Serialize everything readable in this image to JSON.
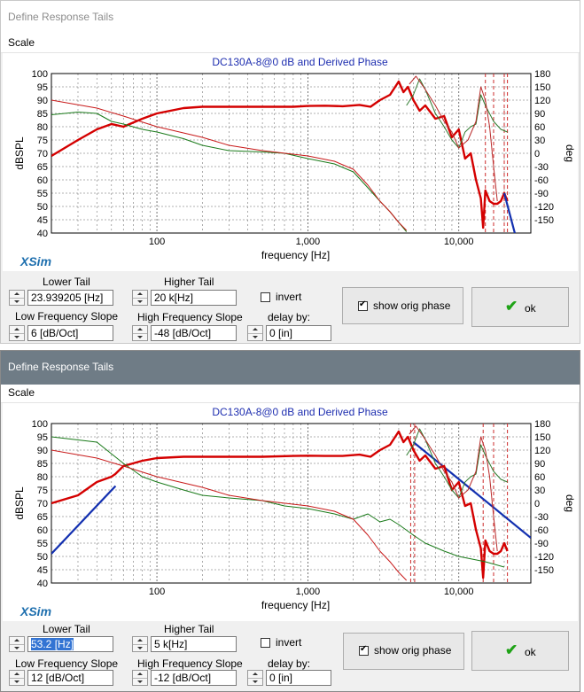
{
  "windows": [
    {
      "title": "Define Response Tails",
      "menu": "Scale",
      "chart_data": {
        "type": "line",
        "title": "DC130A-8@0 dB and Derived Phase",
        "xlabel": "frequency [Hz]",
        "ylabel": "dBSPL",
        "y2label": "deg",
        "x_scale": "log",
        "xlim": [
          20,
          30000
        ],
        "ylim": [
          40,
          100
        ],
        "y2lim": [
          -180,
          180
        ],
        "x_ticks": [
          "100",
          "1,000",
          "10,000"
        ],
        "y_ticks": [
          "100",
          "95",
          "90",
          "85",
          "80",
          "75",
          "70",
          "65",
          "60",
          "55",
          "50",
          "45",
          "40"
        ],
        "y2_ticks": [
          "180",
          "150",
          "120",
          "90",
          "60",
          "30",
          "0",
          "-30",
          "-60",
          "-90",
          "-120",
          "-150"
        ],
        "series": [
          {
            "color": "#d40000",
            "width": 2.4,
            "x": [
              20,
              30,
              40,
              50,
              60,
              80,
              100,
              150,
              200,
              300,
              500,
              800,
              1000,
              1300,
              1700,
              2200,
              2600,
              3000,
              3500,
              4000,
              4300,
              4600,
              5000,
              5500,
              6000,
              7000,
              8000,
              9000,
              10000,
              11000,
              12000,
              13000,
              14000,
              14500,
              15000,
              16000,
              17000,
              18000,
              19000,
              20000,
              21000
            ],
            "y": [
              69,
              75,
              79,
              81,
              80,
              83,
              85,
              87,
              87.5,
              87.5,
              87.5,
              87.5,
              87.8,
              87.9,
              87.7,
              88.2,
              87.5,
              90,
              92,
              97,
              93,
              95,
              90,
              86,
              88,
              83,
              84,
              76,
              79,
              68,
              70,
              60,
              53,
              42,
              56,
              52,
              51,
              51,
              52,
              55,
              52
            ]
          },
          {
            "color": "#1330b0",
            "width": 2.2,
            "x": [
              20000,
              23500
            ],
            "y": [
              55,
              40
            ]
          },
          {
            "color": "#1a7a1a",
            "width": 1,
            "x": [
              20,
              30,
              40,
              50,
              60,
              80,
              100,
              150,
              200,
              300,
              500,
              700,
              1000,
              1500,
              2000,
              2500,
              3000,
              3500,
              4000,
              4500
            ],
            "y": [
              84.5,
              85.5,
              85,
              82,
              81,
              79,
              78,
              75.5,
              73,
              71,
              70.5,
              70,
              68,
              66,
              63,
              57,
              52,
              48,
              44,
              40.5
            ]
          },
          {
            "color": "#c81a1a",
            "width": 1,
            "x": [
              20,
              40,
              60,
              100,
              200,
              300,
              500,
              1000,
              1500,
              2000,
              2500,
              3000,
              3500,
              4000,
              4500
            ],
            "y": [
              90,
              87,
              84,
              80,
              76,
              73,
              71,
              69,
              67,
              64,
              58,
              52,
              48,
              44,
              41
            ]
          },
          {
            "color": "#2e7a2e",
            "width": 1,
            "x": [
              4500,
              5000,
              5500,
              6000,
              7000,
              8000,
              9000,
              10000,
              11000,
              12000,
              13000,
              14000,
              15000,
              17000,
              19000,
              21000
            ],
            "y": [
              88,
              92,
              98,
              94,
              85,
              80,
              75,
              72,
              78,
              80,
              81,
              92,
              88,
              82,
              79,
              78
            ]
          },
          {
            "color": "#b92a2a",
            "width": 1,
            "x": [
              4700,
              5200,
              6000,
              7000,
              8000,
              9000,
              10000,
              11500,
              13000,
              14000,
              15000,
              16000,
              17000,
              18000
            ],
            "y": [
              96,
              99,
              94,
              88,
              82,
              78,
              72,
              75,
              82,
              95,
              90,
              80,
              65,
              52
            ]
          }
        ],
        "vlines": [
          {
            "color": "#cc2a2a",
            "x": [
              15000,
              17000,
              20000,
              21000
            ]
          }
        ]
      },
      "brand": "XSim",
      "lower_tail": {
        "label": "Lower Tail",
        "value": "23.939205 [Hz]"
      },
      "higher_tail": {
        "label": "Higher Tail",
        "value": "20 k[Hz]"
      },
      "low_slope": {
        "label": "Low Frequency Slope",
        "value": "6 [dB/Oct]"
      },
      "high_slope": {
        "label": "High Frequency Slope",
        "value": "-48 [dB/Oct]"
      },
      "invert": {
        "label": "invert",
        "checked": false
      },
      "delay": {
        "label": "delay by:",
        "value": "0 [in]"
      },
      "show_orig_phase": {
        "label": "show orig phase",
        "checked": true
      },
      "ok": "ok"
    },
    {
      "title": "Define Response Tails",
      "menu": "Scale",
      "chart_data": {
        "type": "line",
        "title": "DC130A-8@0 dB and Derived Phase",
        "xlabel": "frequency [Hz]",
        "ylabel": "dBSPL",
        "y2label": "deg",
        "x_scale": "log",
        "xlim": [
          20,
          30000
        ],
        "ylim": [
          40,
          100
        ],
        "y2lim": [
          -180,
          180
        ],
        "x_ticks": [
          "100",
          "1,000",
          "10,000"
        ],
        "y_ticks": [
          "100",
          "95",
          "90",
          "85",
          "80",
          "75",
          "70",
          "65",
          "60",
          "55",
          "50",
          "45",
          "40"
        ],
        "y2_ticks": [
          "180",
          "150",
          "120",
          "90",
          "60",
          "30",
          "0",
          "-30",
          "-60",
          "-90",
          "-120",
          "-150"
        ],
        "series": [
          {
            "color": "#1330b0",
            "width": 2.2,
            "x": [
              20,
              53.2
            ],
            "y": [
              51,
              76.5
            ]
          },
          {
            "color": "#1330b0",
            "width": 2.2,
            "x": [
              5000,
              30000
            ],
            "y": [
              93,
              57
            ]
          },
          {
            "color": "#d40000",
            "width": 2.4,
            "x": [
              20,
              30,
              40,
              50,
              53,
              60,
              80,
              100,
              150,
              200,
              300,
              500,
              800,
              1000,
              1300,
              1700,
              2200,
              2600,
              3000,
              3500,
              4000,
              4300,
              4600,
              5000,
              5500,
              6000,
              7000,
              8000,
              9000,
              10000,
              11000,
              12000,
              13000,
              14000,
              14500,
              15000,
              16000,
              17000,
              18000,
              19000,
              20000,
              21000
            ],
            "y": [
              70,
              73,
              78,
              80,
              81,
              84,
              86,
              87,
              87.5,
              87.5,
              87.5,
              87.5,
              87.8,
              87.9,
              87.8,
              87.8,
              88.3,
              87.5,
              90,
              92,
              97,
              93,
              95,
              90,
              86,
              88,
              83,
              84,
              75,
              78,
              69,
              70,
              60,
              53,
              42,
              56,
              52,
              51,
              51,
              52,
              55,
              52
            ]
          },
          {
            "color": "#1a7a1a",
            "width": 1,
            "x": [
              20,
              40,
              60,
              80,
              100,
              150,
              200,
              300,
              500,
              700,
              1000,
              1500,
              2000,
              2500,
              3000,
              3500,
              4000,
              5000,
              6000,
              8000,
              10000,
              15000,
              20000
            ],
            "y": [
              95,
              93,
              85,
              80,
              78,
              75,
              73,
              72,
              71,
              69,
              68,
              66,
              64,
              66,
              63,
              64,
              62,
              58,
              55,
              52,
              50,
              48,
              46
            ]
          },
          {
            "color": "#c81a1a",
            "width": 1,
            "x": [
              20,
              40,
              60,
              100,
              200,
              300,
              500,
              1000,
              1500,
              2000,
              2500,
              3000,
              3500,
              4000,
              4500
            ],
            "y": [
              90,
              87,
              84,
              80,
              76,
              73,
              71,
              69,
              67,
              64,
              58,
              52,
              48,
              44,
              41
            ]
          },
          {
            "color": "#2e7a2e",
            "width": 1,
            "x": [
              4500,
              5000,
              5500,
              6000,
              7000,
              8000,
              9000,
              10000,
              11000,
              12000,
              13000,
              14000,
              15000,
              17000,
              19000,
              21000
            ],
            "y": [
              88,
              92,
              98,
              94,
              85,
              80,
              75,
              72,
              78,
              80,
              81,
              92,
              88,
              82,
              79,
              78
            ]
          },
          {
            "color": "#b92a2a",
            "width": 1,
            "x": [
              4700,
              5200,
              6000,
              7000,
              8000,
              9000,
              10000,
              11500,
              13000,
              14000,
              15000,
              16000,
              17000,
              18000
            ],
            "y": [
              96,
              99,
              94,
              88,
              82,
              78,
              72,
              75,
              82,
              95,
              90,
              80,
              65,
              52
            ]
          }
        ],
        "vlines": [
          {
            "color": "#cc2a2a",
            "x": [
              4800,
              5100,
              14500,
              17000,
              21000
            ]
          }
        ]
      },
      "brand": "XSim",
      "lower_tail": {
        "label": "Lower Tail",
        "value": "53.2 [Hz]"
      },
      "higher_tail": {
        "label": "Higher Tail",
        "value": "5 k[Hz]"
      },
      "low_slope": {
        "label": "Low Frequency Slope",
        "value": "12 [dB/Oct]"
      },
      "high_slope": {
        "label": "High Frequency Slope",
        "value": "-12 [dB/Oct]"
      },
      "invert": {
        "label": "invert",
        "checked": false
      },
      "delay": {
        "label": "delay by:",
        "value": "0 [in]"
      },
      "show_orig_phase": {
        "label": "show orig phase",
        "checked": true
      },
      "ok": "ok"
    }
  ]
}
